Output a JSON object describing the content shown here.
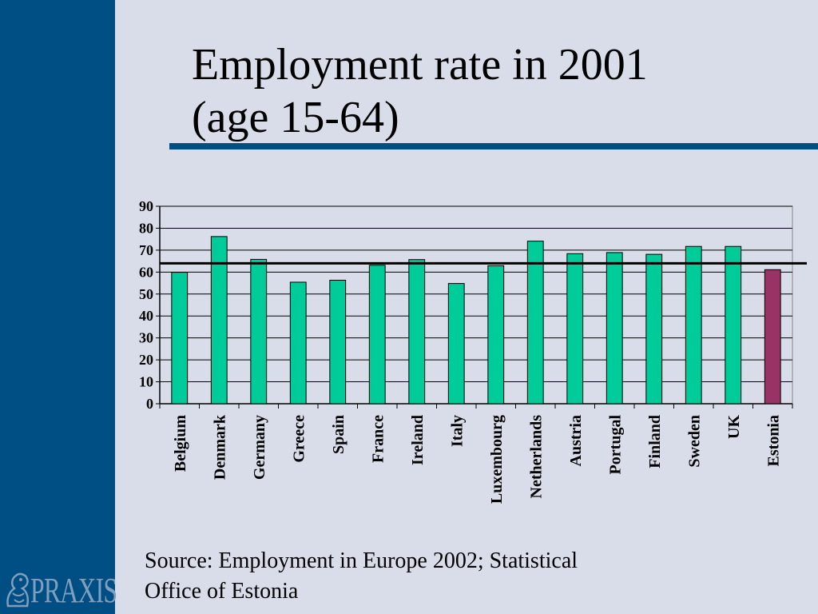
{
  "slide": {
    "title_line1": "Employment rate in 2001",
    "title_line2": "(age 15-64)",
    "source_line1": "Source: Employment in Europe 2002; Statistical",
    "source_line2": "Office of Estonia",
    "logo_text": "PRAXIS"
  },
  "colors": {
    "sidebar": "#004f84",
    "background": "#d8dde9",
    "bar": "#00cc99",
    "highlight_bar": "#993366",
    "reference_line": "#000000"
  },
  "chart_data": {
    "type": "bar",
    "title": "",
    "xlabel": "",
    "ylabel": "",
    "ylim": [
      0,
      90
    ],
    "yticks": [
      0,
      10,
      20,
      30,
      40,
      50,
      60,
      70,
      80,
      90
    ],
    "grid": true,
    "legend": "none",
    "reference_line": 64,
    "highlight_category": "Estonia",
    "categories": [
      "Belgium",
      "Denmark",
      "Germany",
      "Greece",
      "Spain",
      "France",
      "Ireland",
      "Italy",
      "Luxembourg",
      "Netherlands",
      "Austria",
      "Portugal",
      "Finland",
      "Sweden",
      "UK",
      "Estonia"
    ],
    "values": [
      59.9,
      76.2,
      65.8,
      55.4,
      56.3,
      63.1,
      65.7,
      54.8,
      62.9,
      74.1,
      68.4,
      68.9,
      68.1,
      71.7,
      71.7,
      61.1
    ]
  }
}
